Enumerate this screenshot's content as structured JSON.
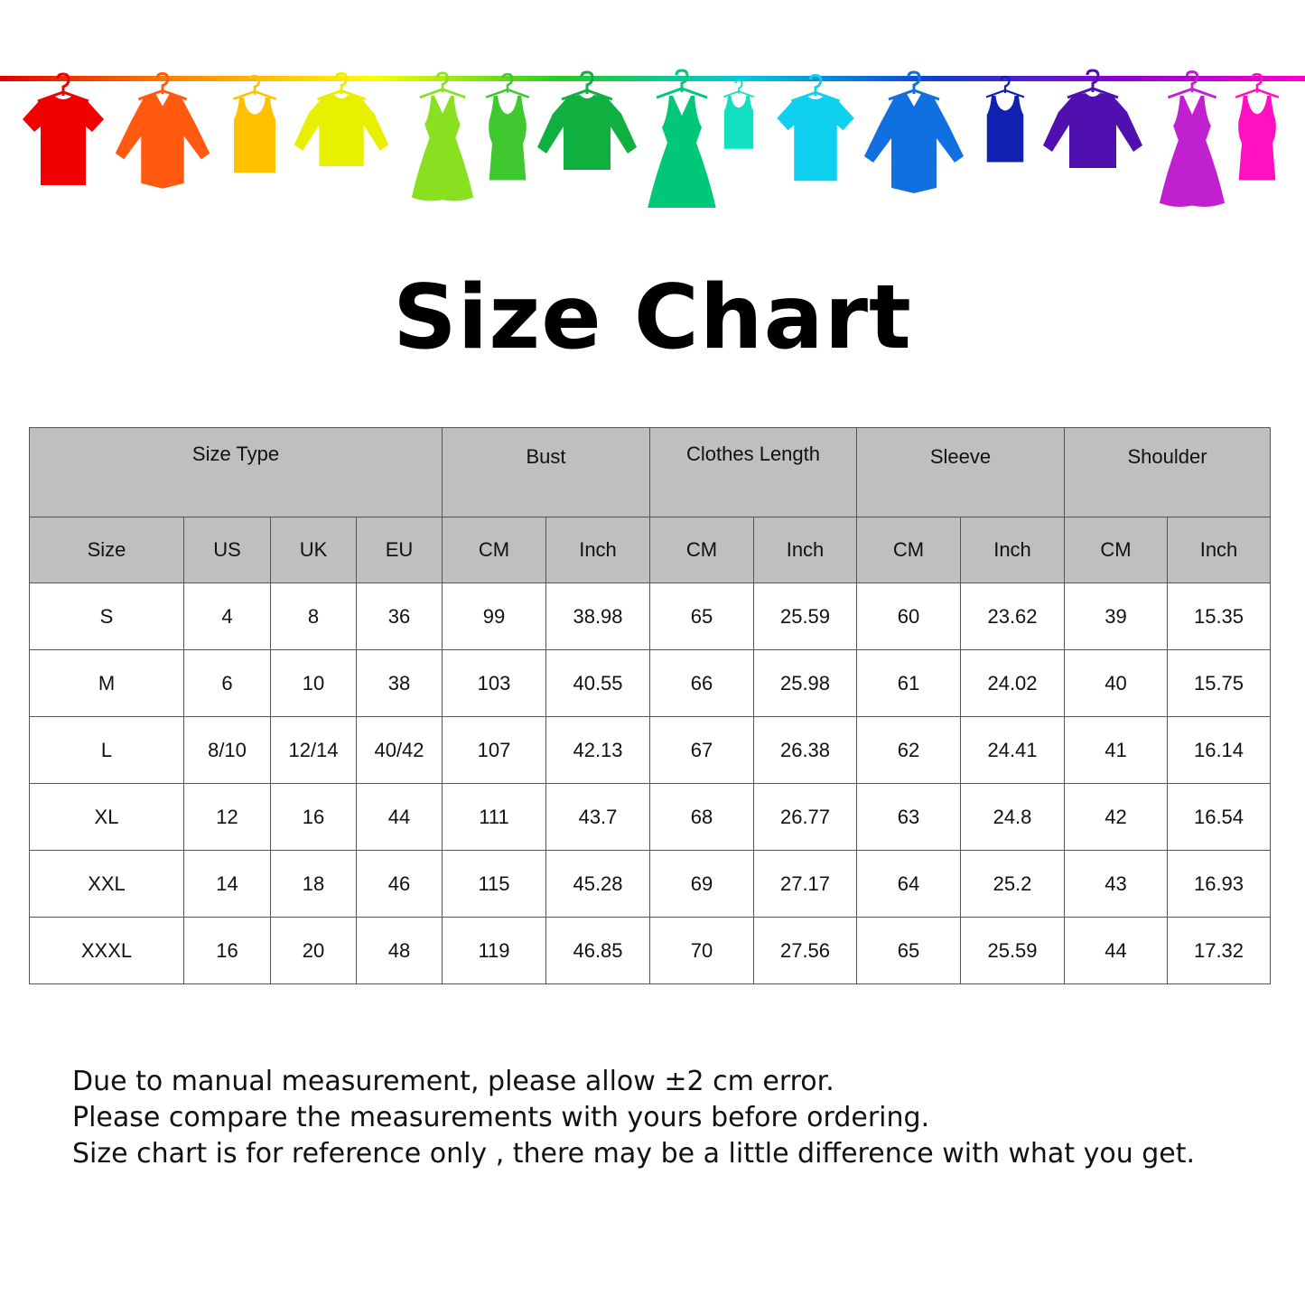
{
  "banner": {
    "rail_gradient": [
      "#e00000",
      "#ff8c00",
      "#ffff00",
      "#22cc22",
      "#00c8e0",
      "#1040d0",
      "#8a00d0",
      "#ff00cc"
    ],
    "garments": [
      {
        "icon": "t-shirt-icon",
        "color": "#f20000"
      },
      {
        "icon": "shirt-icon",
        "color": "#ff5a10"
      },
      {
        "icon": "tank-top-icon",
        "color": "#ffc000"
      },
      {
        "icon": "sweater-icon",
        "color": "#e8f000"
      },
      {
        "icon": "dress-icon",
        "color": "#88e020"
      },
      {
        "icon": "tank-dress-icon",
        "color": "#40c830"
      },
      {
        "icon": "sweater-icon",
        "color": "#10b040"
      },
      {
        "icon": "dress-icon",
        "color": "#00c878"
      },
      {
        "icon": "tank-top-icon",
        "color": "#10e0c0"
      },
      {
        "icon": "t-shirt-icon",
        "color": "#10d0f0"
      },
      {
        "icon": "shirt-icon",
        "color": "#1070e0"
      },
      {
        "icon": "tank-top-icon",
        "color": "#1020b0"
      },
      {
        "icon": "sweater-icon",
        "color": "#5010b0"
      },
      {
        "icon": "dress-icon",
        "color": "#c020d0"
      },
      {
        "icon": "tank-dress-icon",
        "color": "#ff10c0"
      }
    ]
  },
  "title": "Size Chart",
  "table": {
    "group_headers": [
      "Size Type",
      "Bust",
      "Clothes Length",
      "Sleeve",
      "Shoulder"
    ],
    "sub_headers": [
      "Size",
      "US",
      "UK",
      "EU",
      "CM",
      "Inch",
      "CM",
      "Inch",
      "CM",
      "Inch",
      "CM",
      "Inch"
    ],
    "rows": [
      [
        "S",
        "4",
        "8",
        "36",
        "99",
        "38.98",
        "65",
        "25.59",
        "60",
        "23.62",
        "39",
        "15.35"
      ],
      [
        "M",
        "6",
        "10",
        "38",
        "103",
        "40.55",
        "66",
        "25.98",
        "61",
        "24.02",
        "40",
        "15.75"
      ],
      [
        "L",
        "8/10",
        "12/14",
        "40/42",
        "107",
        "42.13",
        "67",
        "26.38",
        "62",
        "24.41",
        "41",
        "16.14"
      ],
      [
        "XL",
        "12",
        "16",
        "44",
        "111",
        "43.7",
        "68",
        "26.77",
        "63",
        "24.8",
        "42",
        "16.54"
      ],
      [
        "XXL",
        "14",
        "18",
        "46",
        "115",
        "45.28",
        "69",
        "27.17",
        "64",
        "25.2",
        "43",
        "16.93"
      ],
      [
        "XXXL",
        "16",
        "20",
        "48",
        "119",
        "46.85",
        "70",
        "27.56",
        "65",
        "25.59",
        "44",
        "17.32"
      ]
    ]
  },
  "notes": [
    "Due to manual measurement, please allow ±2 cm error.",
    "Please compare the measurements with yours before ordering.",
    "Size chart is for reference only , there may be a little difference with what you get."
  ]
}
